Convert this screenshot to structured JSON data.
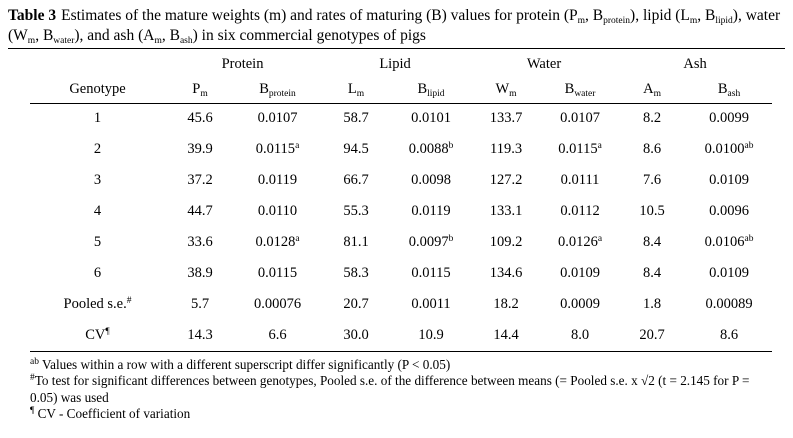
{
  "title": {
    "bold": "Table 3",
    "segments": [
      {
        "t": "Estimates of the mature weights (m) and rates of maturing (B) values for protein (P"
      },
      {
        "t": "m",
        "sub": true
      },
      {
        "t": ", B"
      },
      {
        "t": "protein",
        "sub": true
      },
      {
        "t": "), lipid (L"
      },
      {
        "t": "m",
        "sub": true
      },
      {
        "t": ", B"
      },
      {
        "t": "lipid",
        "sub": true
      },
      {
        "t": "), water (W"
      },
      {
        "t": "m",
        "sub": true
      },
      {
        "t": ", B"
      },
      {
        "t": "water",
        "sub": true
      },
      {
        "t": "), and ash (A"
      },
      {
        "t": "m",
        "sub": true
      },
      {
        "t": ", B"
      },
      {
        "t": "ash",
        "sub": true
      },
      {
        "t": ") in six commercial genotypes of pigs"
      }
    ]
  },
  "table": {
    "groups": [
      "Protein",
      "Lipid",
      "Water",
      "Ash"
    ],
    "columns": [
      {
        "base": "Genotype"
      },
      {
        "base": "P",
        "sub": "m"
      },
      {
        "base": "B",
        "sub": "protein"
      },
      {
        "base": "L",
        "sub": "m"
      },
      {
        "base": "B",
        "sub": "lipid"
      },
      {
        "base": "W",
        "sub": "m"
      },
      {
        "base": "B",
        "sub": "water"
      },
      {
        "base": "A",
        "sub": "m"
      },
      {
        "base": "B",
        "sub": "ash"
      }
    ],
    "rows": [
      {
        "label": "1",
        "cells": [
          {
            "v": "45.6"
          },
          {
            "v": "0.0107"
          },
          {
            "v": "58.7"
          },
          {
            "v": "0.0101"
          },
          {
            "v": "133.7"
          },
          {
            "v": "0.0107"
          },
          {
            "v": "8.2"
          },
          {
            "v": "0.0099"
          }
        ]
      },
      {
        "label": "2",
        "cells": [
          {
            "v": "39.9"
          },
          {
            "v": "0.0115",
            "sup": "a"
          },
          {
            "v": "94.5"
          },
          {
            "v": "0.0088",
            "sup": "b"
          },
          {
            "v": "119.3"
          },
          {
            "v": "0.0115",
            "sup": "a"
          },
          {
            "v": "8.6"
          },
          {
            "v": "0.0100",
            "sup": "ab"
          }
        ]
      },
      {
        "label": "3",
        "cells": [
          {
            "v": "37.2"
          },
          {
            "v": "0.0119"
          },
          {
            "v": "66.7"
          },
          {
            "v": "0.0098"
          },
          {
            "v": "127.2"
          },
          {
            "v": "0.0111"
          },
          {
            "v": "7.6"
          },
          {
            "v": "0.0109"
          }
        ]
      },
      {
        "label": "4",
        "cells": [
          {
            "v": "44.7"
          },
          {
            "v": "0.0110"
          },
          {
            "v": "55.3"
          },
          {
            "v": "0.0119"
          },
          {
            "v": "133.1"
          },
          {
            "v": "0.0112"
          },
          {
            "v": "10.5"
          },
          {
            "v": "0.0096"
          }
        ]
      },
      {
        "label": "5",
        "cells": [
          {
            "v": "33.6"
          },
          {
            "v": "0.0128",
            "sup": "a"
          },
          {
            "v": "81.1"
          },
          {
            "v": "0.0097",
            "sup": "b"
          },
          {
            "v": "109.2"
          },
          {
            "v": "0.0126",
            "sup": "a"
          },
          {
            "v": "8.4"
          },
          {
            "v": "0.0106",
            "sup": "ab"
          }
        ]
      },
      {
        "label": "6",
        "cells": [
          {
            "v": "38.9"
          },
          {
            "v": "0.0115"
          },
          {
            "v": "58.3"
          },
          {
            "v": "0.0115"
          },
          {
            "v": "134.6"
          },
          {
            "v": "0.0109"
          },
          {
            "v": "8.4"
          },
          {
            "v": "0.0109"
          }
        ]
      },
      {
        "label": "Pooled s.e.",
        "label_sup": "#",
        "cells": [
          {
            "v": "5.7"
          },
          {
            "v": "0.00076"
          },
          {
            "v": "20.7"
          },
          {
            "v": "0.0011"
          },
          {
            "v": "18.2"
          },
          {
            "v": "0.0009"
          },
          {
            "v": "1.8"
          },
          {
            "v": "0.00089"
          }
        ]
      },
      {
        "label": "CV",
        "label_sup": "¶",
        "cells": [
          {
            "v": "14.3"
          },
          {
            "v": "6.6"
          },
          {
            "v": "30.0"
          },
          {
            "v": "10.9"
          },
          {
            "v": "14.4"
          },
          {
            "v": "8.0"
          },
          {
            "v": "20.7"
          },
          {
            "v": "8.6"
          }
        ]
      }
    ]
  },
  "footnotes": [
    {
      "segments": [
        {
          "t": "ab",
          "sup": true
        },
        {
          "t": " Values within a row with a different superscript differ significantly (P < 0.05)"
        }
      ]
    },
    {
      "segments": [
        {
          "t": "#",
          "sup": true
        },
        {
          "t": "To test for significant differences between genotypes, Pooled s.e. of the difference between means (= Pooled s.e. x √2  (t = 2.145 for P = 0.05) was used"
        }
      ]
    },
    {
      "segments": [
        {
          "t": "¶",
          "sup": true
        },
        {
          "t": " CV - Coefficient of variation"
        }
      ]
    }
  ]
}
